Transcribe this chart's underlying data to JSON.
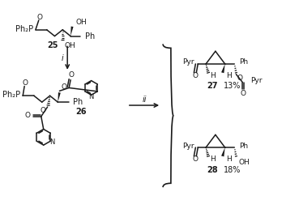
{
  "bg_color": "#ffffff",
  "fig_width": 3.69,
  "fig_height": 2.63,
  "dpi": 100,
  "line_color": "#1a1a1a",
  "text_color": "#1a1a1a",
  "label_25": "25",
  "label_26": "26",
  "label_27": "27",
  "label_27_pct": "13%",
  "label_28": "28",
  "label_28_pct": "18%",
  "reagent_i": "i",
  "reagent_ii": "ii"
}
